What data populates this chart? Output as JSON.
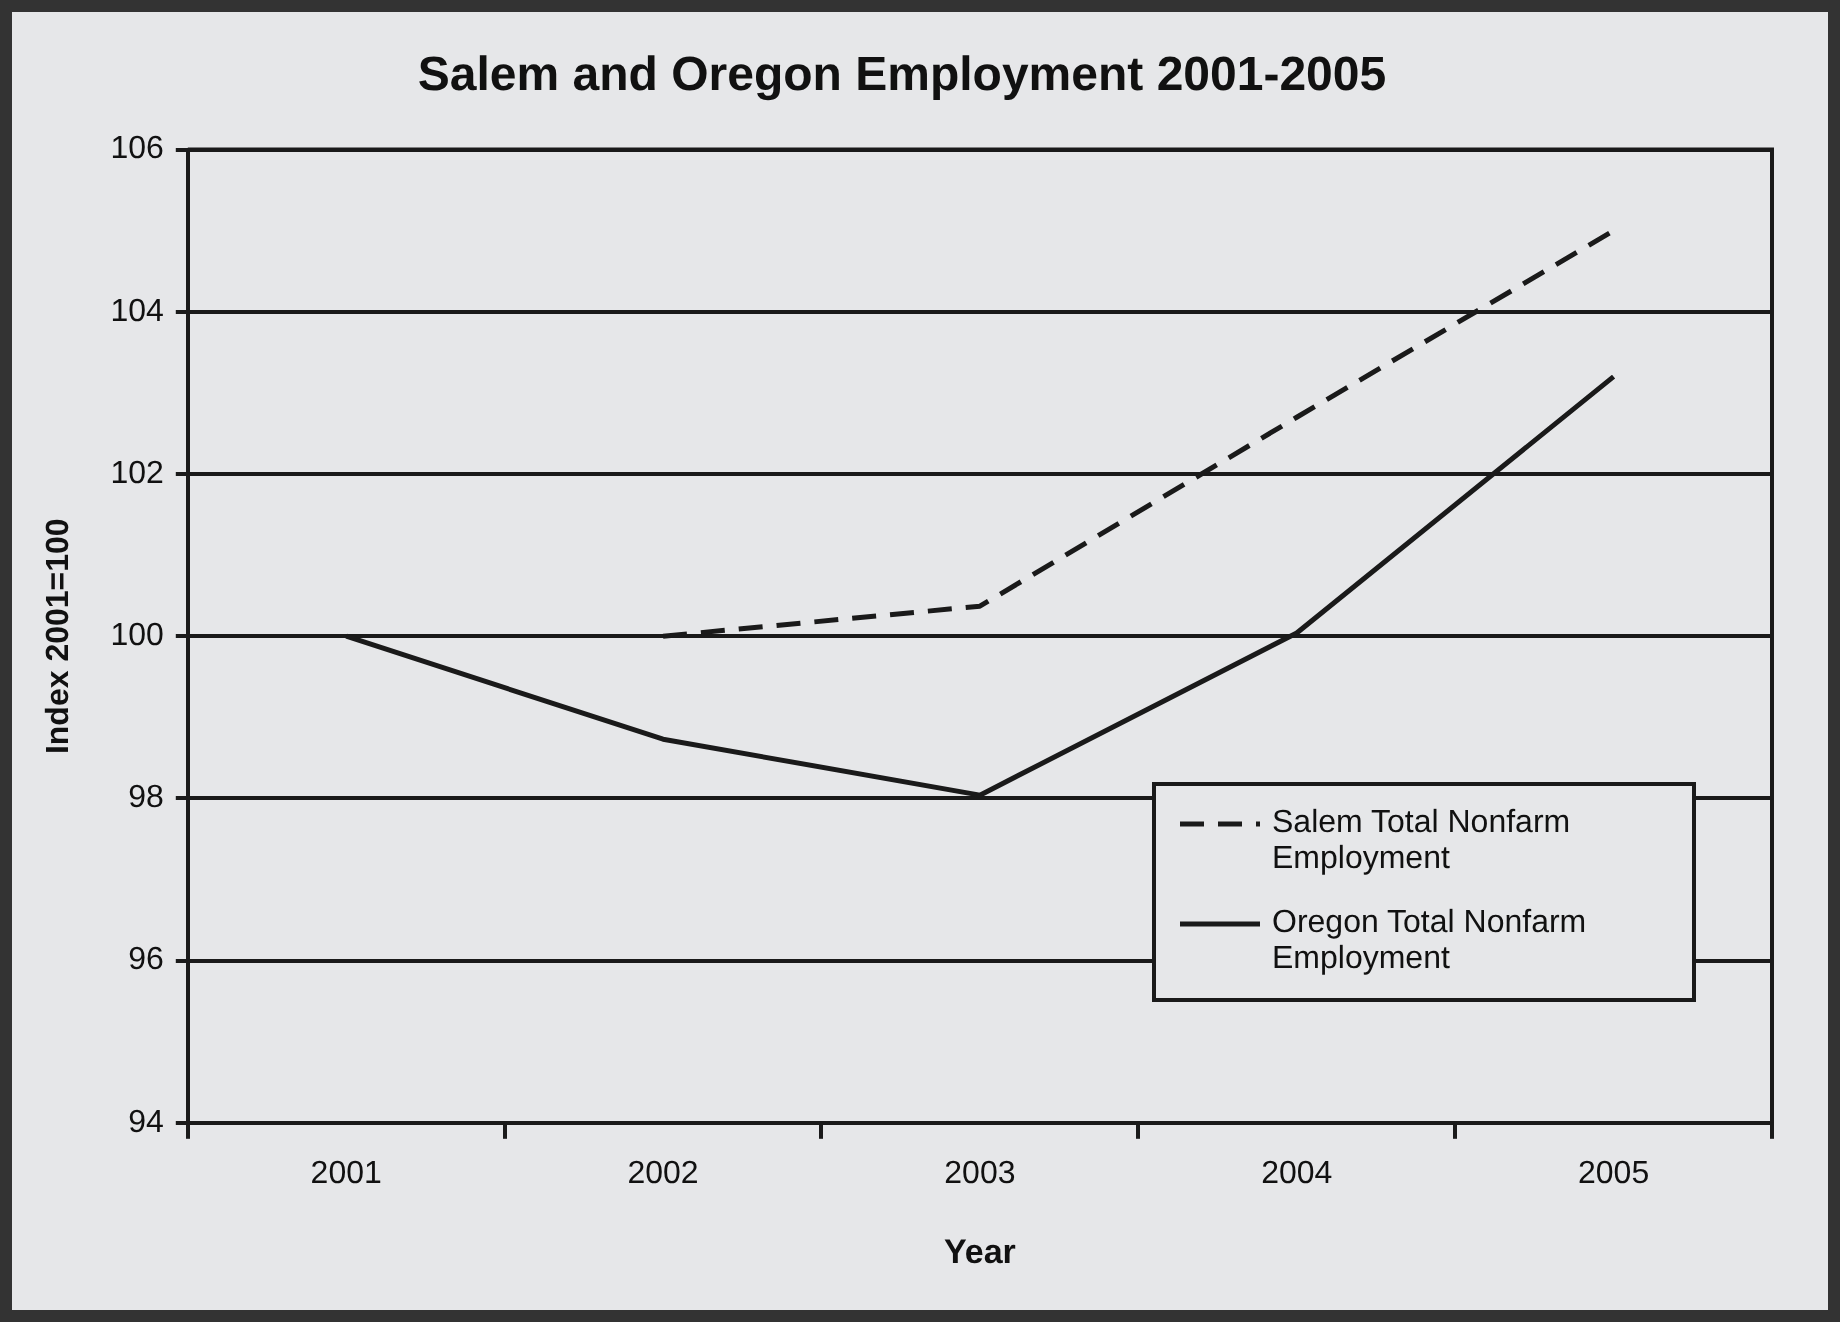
{
  "chart_data": {
    "type": "line",
    "title": "Salem and Oregon Employment 2001-2005",
    "xlabel": "Year",
    "ylabel": "Index 2001=100",
    "categories": [
      "2001",
      "2002",
      "2003",
      "2004",
      "2005"
    ],
    "series": [
      {
        "name": "Salem Total Nonfarm Employment",
        "color": "#1a1a1a",
        "line_style": "dashed",
        "values": [
          null,
          100,
          100.37,
          102.7,
          105
        ]
      },
      {
        "name": "Oregon Total Nonfarm Employment",
        "color": "#1a1a1a",
        "line_style": "solid",
        "values": [
          100,
          98.73,
          98.04,
          100.04,
          103.2
        ]
      }
    ],
    "ylim": [
      94,
      106
    ],
    "yticks": [
      94,
      96,
      98,
      100,
      102,
      104,
      106
    ],
    "grid": "y",
    "legend": "bottom right",
    "marker": "none"
  }
}
